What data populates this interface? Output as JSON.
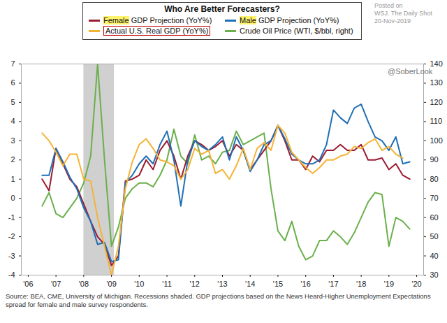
{
  "chart_data": {
    "type": "line",
    "title": "Who Are Better Forecasters?",
    "legend": "top",
    "grid": false,
    "x": [
      2006.5,
      2006.75,
      2007,
      2007.25,
      2007.5,
      2007.75,
      2008,
      2008.25,
      2008.5,
      2008.75,
      2009,
      2009.25,
      2009.5,
      2009.75,
      2010,
      2010.25,
      2010.5,
      2010.75,
      2011,
      2011.25,
      2011.5,
      2011.75,
      2012,
      2012.25,
      2012.5,
      2012.75,
      2013,
      2013.25,
      2013.5,
      2013.75,
      2014,
      2014.25,
      2014.5,
      2014.75,
      2015,
      2015.25,
      2015.5,
      2015.75,
      2016,
      2016.25,
      2016.5,
      2016.75,
      2017,
      2017.25,
      2017.5,
      2017.75,
      2018,
      2018.25,
      2018.5,
      2018.75,
      2019,
      2019.25,
      2019.5,
      2019.75
    ],
    "xlim": [
      2005.75,
      2020.25
    ],
    "xticks": [
      {
        "value": 2006,
        "label": "'06"
      },
      {
        "value": 2007,
        "label": "'07"
      },
      {
        "value": 2008,
        "label": "'08"
      },
      {
        "value": 2009,
        "label": "'09"
      },
      {
        "value": 2010,
        "label": "'10"
      },
      {
        "value": 2011,
        "label": "'11"
      },
      {
        "value": 2012,
        "label": "'12"
      },
      {
        "value": 2013,
        "label": "'13"
      },
      {
        "value": 2014,
        "label": "'14"
      },
      {
        "value": 2015,
        "label": "'15"
      },
      {
        "value": 2016,
        "label": "'16"
      },
      {
        "value": 2017,
        "label": "'17"
      },
      {
        "value": 2018,
        "label": "'18"
      },
      {
        "value": 2019,
        "label": "'19"
      },
      {
        "value": 2020,
        "label": "'20"
      }
    ],
    "ylim": [
      -4,
      7
    ],
    "yticks": [
      -4,
      -3,
      -2,
      -1,
      0,
      1,
      2,
      3,
      4,
      5,
      6,
      7
    ],
    "y2lim": [
      30,
      140
    ],
    "y2ticks": [
      30,
      40,
      50,
      60,
      70,
      80,
      90,
      100,
      110,
      120,
      130,
      140
    ],
    "recessions": [
      {
        "start": 2008.0,
        "end": 2009.1
      }
    ],
    "series": [
      {
        "name": "Female GDP Projection (YoY%)",
        "color": "#9b1b30",
        "values": [
          1.0,
          0.4,
          2.6,
          1.8,
          1.0,
          0.6,
          -0.3,
          -1.2,
          -2.0,
          -2.4,
          -3.5,
          -3.0,
          0.9,
          1.0,
          1.2,
          2.0,
          1.5,
          2.5,
          3.0,
          2.2,
          1.0,
          2.2,
          3.0,
          2.8,
          2.5,
          2.7,
          3.0,
          2.2,
          2.8,
          2.5,
          1.5,
          2.0,
          2.5,
          3.0,
          3.8,
          3.0,
          2.0,
          2.0,
          1.5,
          2.2,
          1.9,
          2.5,
          2.5,
          2.8,
          2.5,
          2.5,
          2.8,
          2.0,
          2.0,
          2.1,
          1.5,
          1.8,
          1.2,
          1.0
        ]
      },
      {
        "name": "Male GDP Projection (YoY%)",
        "color": "#1f6fb5",
        "values": [
          1.2,
          1.2,
          2.6,
          1.9,
          1.1,
          0.5,
          -0.5,
          -1.2,
          -2.4,
          -2.3,
          -3.3,
          -3.2,
          0.8,
          1.2,
          1.8,
          2.2,
          1.8,
          2.8,
          3.5,
          2.0,
          -0.4,
          2.0,
          3.0,
          2.7,
          2.5,
          2.8,
          3.2,
          2.0,
          3.2,
          2.5,
          1.4,
          2.0,
          2.8,
          3.0,
          3.8,
          3.1,
          2.3,
          2.0,
          1.8,
          1.8,
          2.0,
          2.8,
          4.6,
          4.2,
          3.9,
          4.7,
          4.9,
          4.0,
          3.2,
          3.0,
          2.5,
          3.2,
          1.8,
          1.9
        ]
      },
      {
        "name": "Actual U.S. Real GDP (YoY%)",
        "color": "#f5b335",
        "values": [
          3.4,
          3.0,
          2.4,
          1.7,
          2.3,
          2.3,
          1.0,
          0.9,
          -1.0,
          -2.5,
          -4.0,
          -2.5,
          0.5,
          1.9,
          2.8,
          3.1,
          2.6,
          2.0,
          1.9,
          1.7,
          1.0,
          1.5,
          2.6,
          2.3,
          2.5,
          1.3,
          1.5,
          1.0,
          1.7,
          2.6,
          1.5,
          2.6,
          2.9,
          2.5,
          3.8,
          3.4,
          2.4,
          2.0,
          1.6,
          1.3,
          1.6,
          2.0,
          2.0,
          2.2,
          2.3,
          2.7,
          2.6,
          2.9,
          3.1,
          2.5,
          2.7,
          2.3,
          2.1,
          null
        ]
      },
      {
        "name": "Crude Oil Price (WTI, $/bbl, right)",
        "color": "#6ab04c",
        "axis": "y2",
        "values": [
          66,
          73,
          62,
          60,
          65,
          70,
          78,
          92,
          140,
          90,
          45,
          55,
          70,
          75,
          78,
          78,
          76,
          82,
          90,
          106,
          92,
          88,
          103,
          90,
          92,
          88,
          94,
          95,
          105,
          98,
          100,
          102,
          104,
          75,
          53,
          48,
          58,
          45,
          38,
          40,
          48,
          48,
          53,
          50,
          46,
          52,
          60,
          68,
          73,
          72,
          45,
          60,
          58,
          54
        ]
      }
    ],
    "watermark": [
      "Posted on",
      "WSJ. The Daily Shot",
      "20-Nov-2019"
    ],
    "credit": "@SoberLook",
    "source": "Source: BEA, CME, University of Michigan. Recessions shaded. GDP projections based on the News Heard-Higher Unemployment Expectations spread for female and male survey respondents."
  }
}
